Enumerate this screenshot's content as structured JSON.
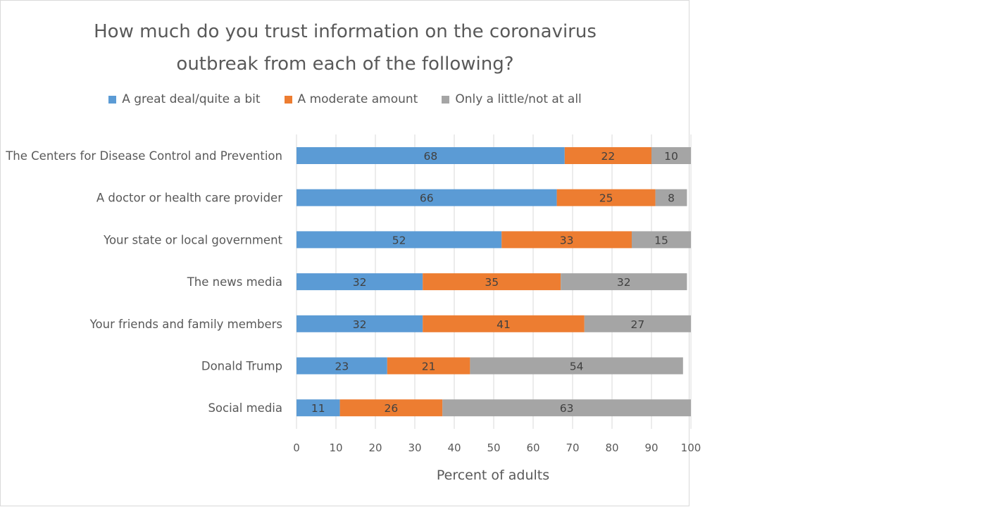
{
  "chart_data": {
    "type": "bar",
    "orientation": "horizontal",
    "stacked": true,
    "title": "How much do you trust information on the coronavirus\noutbreak from each of the following?",
    "xlabel": "Percent of adults",
    "ylabel": "",
    "xlim": [
      0,
      100
    ],
    "x_ticks": [
      "0",
      "10",
      "20",
      "30",
      "40",
      "50",
      "60",
      "70",
      "80",
      "90",
      "100"
    ],
    "grid": true,
    "legend_position": "top",
    "categories": [
      "The Centers for Disease Control and Prevention",
      "A doctor or health care provider",
      "Your state or local government",
      "The news media",
      "Your friends and family members",
      "Donald Trump",
      "Social media"
    ],
    "series": [
      {
        "name": "A great deal/quite a bit",
        "color": "#5b9bd5",
        "values": [
          68,
          66,
          52,
          32,
          32,
          23,
          11
        ]
      },
      {
        "name": "A moderate amount",
        "color": "#ed7d31",
        "values": [
          22,
          25,
          33,
          35,
          41,
          21,
          26
        ]
      },
      {
        "name": "Only a little/not at all",
        "color": "#a5a5a5",
        "values": [
          10,
          8,
          15,
          32,
          27,
          54,
          63
        ]
      }
    ]
  }
}
